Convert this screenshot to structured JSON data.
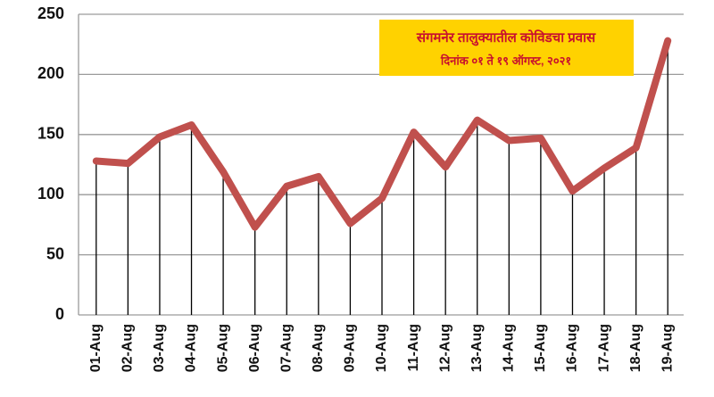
{
  "chart_data": {
    "type": "line",
    "title": "संगमनेर तालुक्यातील कोविडचा प्रवास",
    "subtitle": "दिनांक ०१ ते १९ ऑगस्ट, २०२१",
    "categories": [
      "01-Aug",
      "02-Aug",
      "03-Aug",
      "04-Aug",
      "05-Aug",
      "06-Aug",
      "07-Aug",
      "08-Aug",
      "09-Aug",
      "10-Aug",
      "11-Aug",
      "12-Aug",
      "13-Aug",
      "14-Aug",
      "15-Aug",
      "16-Aug",
      "17-Aug",
      "18-Aug",
      "19-Aug"
    ],
    "values": [
      128,
      126,
      148,
      158,
      119,
      73,
      107,
      115,
      76,
      97,
      152,
      123,
      162,
      145,
      147,
      103,
      122,
      139,
      228
    ],
    "color": "#c0504d",
    "ylim": [
      0,
      250
    ],
    "yticks": [
      0,
      50,
      100,
      150,
      200,
      250
    ],
    "grid": true
  }
}
